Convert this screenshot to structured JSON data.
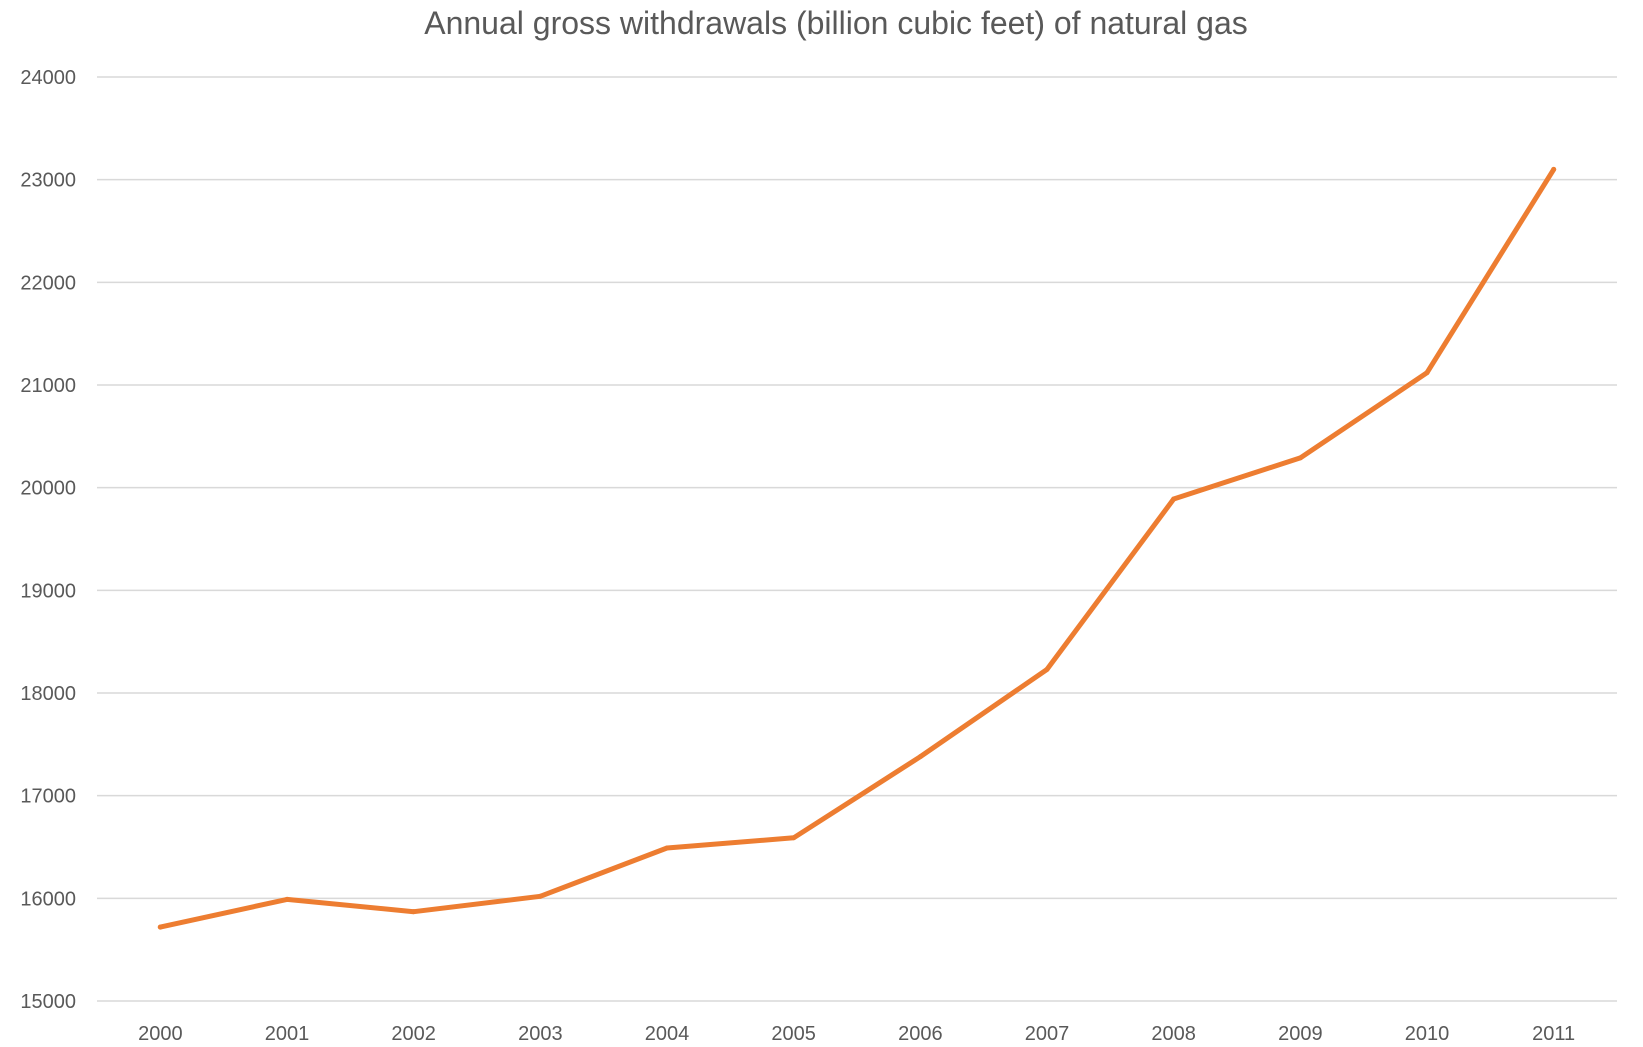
{
  "chart_data": {
    "type": "line",
    "title": "Annual gross withdrawals (billion cubic feet) of natural gas",
    "xlabel": "",
    "ylabel": "",
    "categories": [
      "2000",
      "2001",
      "2002",
      "2003",
      "2004",
      "2005",
      "2006",
      "2007",
      "2008",
      "2009",
      "2010",
      "2011"
    ],
    "series": [
      {
        "values": [
          15720,
          15990,
          15870,
          16020,
          16490,
          16590,
          17380,
          18230,
          19890,
          20290,
          21120,
          23100
        ],
        "color": "#ed7d31"
      }
    ],
    "ylim": [
      15000,
      24000
    ],
    "yticks": [
      "15000",
      "16000",
      "17000",
      "18000",
      "19000",
      "20000",
      "21000",
      "22000",
      "23000",
      "24000"
    ],
    "grid": true,
    "legend": "none"
  }
}
